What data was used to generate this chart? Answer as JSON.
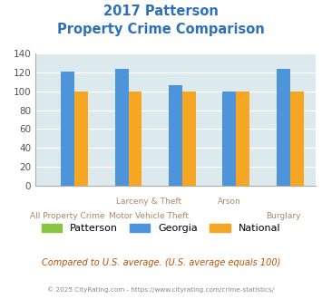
{
  "title_line1": "2017 Patterson",
  "title_line2": "Property Crime Comparison",
  "title_color": "#3070b8",
  "patterson_values": [
    0,
    0,
    0,
    0,
    0
  ],
  "georgia_values": [
    121,
    124,
    107,
    100,
    124
  ],
  "national_values": [
    100,
    100,
    100,
    100,
    100
  ],
  "patterson_color": "#88c441",
  "georgia_color": "#4d94db",
  "national_color": "#f5a623",
  "ylim": [
    0,
    140
  ],
  "yticks": [
    0,
    20,
    40,
    60,
    80,
    100,
    120,
    140
  ],
  "background_color": "#dce9ed",
  "label_color": "#aa8866",
  "note": "Compared to U.S. average. (U.S. average equals 100)",
  "note_color": "#c05000",
  "footer": "© 2025 CityRating.com - https://www.cityrating.com/crime-statistics/",
  "footer_color": "#888888",
  "legend_labels": [
    "Patterson",
    "Georgia",
    "National"
  ],
  "x_upper_labels": [
    [
      "Larceny & Theft",
      1.5
    ],
    [
      "Arson",
      3.0
    ]
  ],
  "x_lower_labels": [
    [
      "All Property Crime",
      0.0
    ],
    [
      "Motor Vehicle Theft",
      1.5
    ],
    [
      "Burglary",
      4.0
    ]
  ]
}
